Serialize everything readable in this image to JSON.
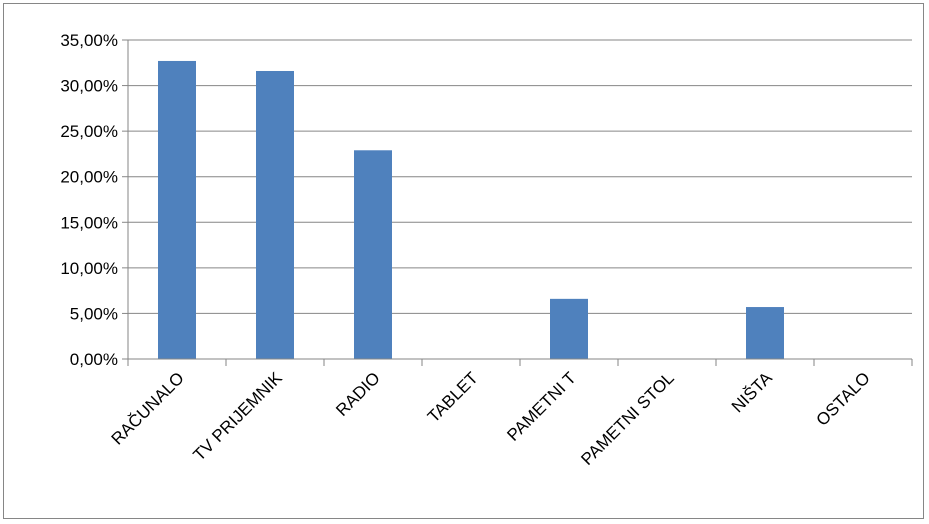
{
  "chart_data": {
    "type": "bar",
    "title": "",
    "xlabel": "",
    "ylabel": "",
    "categories": [
      "RAČUNALO",
      "TV PRIJEMNIK",
      "RADIO",
      "TABLET",
      "PAMETNI T",
      "PAMETNI STOL",
      "NIŠTA",
      "OSTALO"
    ],
    "values": [
      32.7,
      31.6,
      22.9,
      0.0,
      6.6,
      0.0,
      5.7,
      0.0
    ],
    "ylim": [
      0,
      35
    ],
    "yticks": [
      0,
      5,
      10,
      15,
      20,
      25,
      30,
      35
    ],
    "ytick_labels": [
      "0,00%",
      "5,00%",
      "10,00%",
      "15,00%",
      "20,00%",
      "25,00%",
      "30,00%",
      "35,00%"
    ],
    "grid": true,
    "legend": "none",
    "bar_color": "#4F81BD",
    "grid_color": "#868686"
  }
}
